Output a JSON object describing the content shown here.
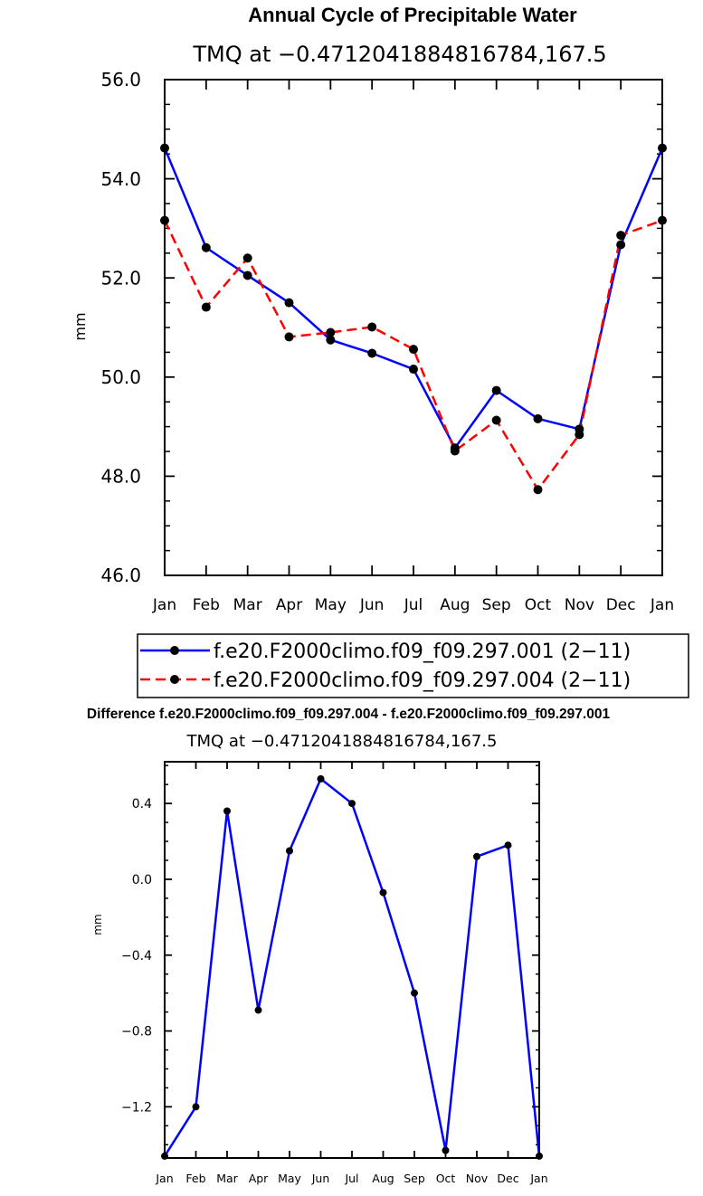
{
  "chart_data": [
    {
      "type": "line",
      "title": "Annual Cycle of Precipitable Water",
      "subtitle": "TMQ at −0.4712041884816784,167.5",
      "ylabel": "mm",
      "xlabel": "",
      "ylim": [
        46.0,
        56.0
      ],
      "y_ticks": [
        "46.0",
        "48.0",
        "50.0",
        "52.0",
        "54.0",
        "56.0"
      ],
      "y_tick_values": [
        46,
        48,
        50,
        52,
        54,
        56
      ],
      "categories": [
        "Jan",
        "Feb",
        "Mar",
        "Apr",
        "May",
        "Jun",
        "Jul",
        "Aug",
        "Sep",
        "Oct",
        "Nov",
        "Dec",
        "Jan"
      ],
      "series": [
        {
          "name": "f.e20.F2000climo.f09_f09.297.001 (2−11)",
          "color": "#0000ff",
          "dash": "solid",
          "values": [
            54.62,
            52.61,
            52.05,
            51.5,
            50.75,
            50.48,
            50.16,
            48.57,
            49.73,
            49.16,
            48.95,
            52.67,
            54.62
          ]
        },
        {
          "name": "f.e20.F2000climo.f09_f09.297.004 (2−11)",
          "color": "#ff0000",
          "dash": "dashed",
          "values": [
            53.16,
            51.41,
            52.4,
            50.81,
            50.9,
            51.01,
            50.56,
            48.51,
            49.13,
            47.73,
            48.84,
            52.86,
            53.16
          ]
        }
      ]
    },
    {
      "type": "line",
      "title": "Difference f.e20.F2000climo.f09_f09.297.004 - f.e20.F2000climo.f09_f09.297.001",
      "subtitle": "TMQ at −0.4712041884816784,167.5",
      "ylabel": "mm",
      "xlabel": "",
      "ylim": [
        -1.47,
        0.62
      ],
      "y_ticks": [
        "−1.2",
        "−0.8",
        "−0.4",
        "0.0",
        "0.4"
      ],
      "y_tick_values": [
        -1.2,
        -0.8,
        -0.4,
        0.0,
        0.4
      ],
      "categories": [
        "Jan",
        "Feb",
        "Mar",
        "Apr",
        "May",
        "Jun",
        "Jul",
        "Aug",
        "Sep",
        "Oct",
        "Nov",
        "Dec",
        "Jan"
      ],
      "series": [
        {
          "name": "difference",
          "color": "#0000ff",
          "dash": "solid",
          "values": [
            -1.46,
            -1.2,
            0.36,
            -0.69,
            0.15,
            0.53,
            0.4,
            -0.07,
            -0.6,
            -1.43,
            0.12,
            0.18,
            -1.46
          ]
        }
      ]
    }
  ]
}
